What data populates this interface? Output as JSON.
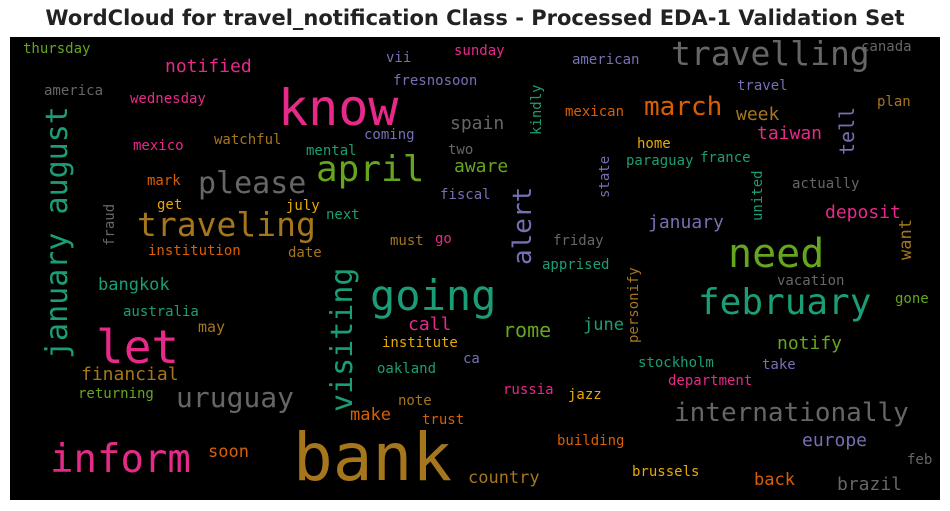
{
  "chart_data": {
    "type": "wordcloud",
    "title": "WordCloud for travel_notification Class - Processed EDA-1 Validation Set",
    "background": "#000000",
    "words": [
      {
        "text": "bank",
        "weight": 1.0,
        "color": "#a6761d"
      },
      {
        "text": "know",
        "weight": 0.83,
        "color": "#e7298a"
      },
      {
        "text": "let",
        "weight": 0.77,
        "color": "#e7298a"
      },
      {
        "text": "going",
        "weight": 0.71,
        "color": "#1b9e77"
      },
      {
        "text": "need",
        "weight": 0.67,
        "color": "#66a61e"
      },
      {
        "text": "inform",
        "weight": 0.65,
        "color": "#e7298a"
      },
      {
        "text": "april",
        "weight": 0.6,
        "color": "#66a61e"
      },
      {
        "text": "february",
        "weight": 0.6,
        "color": "#1b9e77"
      },
      {
        "text": "travelling",
        "weight": 0.55,
        "color": "#666666"
      },
      {
        "text": "traveling",
        "weight": 0.55,
        "color": "#a6761d"
      },
      {
        "text": "please",
        "weight": 0.5,
        "color": "#666666"
      },
      {
        "text": "visiting",
        "weight": 0.5,
        "color": "#1b9e77"
      },
      {
        "text": "january august",
        "weight": 0.5,
        "color": "#1b9e77"
      },
      {
        "text": "uruguay",
        "weight": 0.47,
        "color": "#666666"
      },
      {
        "text": "internationally",
        "weight": 0.44,
        "color": "#666666"
      },
      {
        "text": "march",
        "weight": 0.44,
        "color": "#d95f02"
      },
      {
        "text": "alert",
        "weight": 0.43,
        "color": "#7570b3"
      },
      {
        "text": "rome",
        "weight": 0.34,
        "color": "#66a61e"
      },
      {
        "text": "tell",
        "weight": 0.34,
        "color": "#7570b3"
      },
      {
        "text": "notified",
        "weight": 0.31,
        "color": "#e7298a"
      },
      {
        "text": "spain",
        "weight": 0.31,
        "color": "#666666"
      },
      {
        "text": "taiwan",
        "weight": 0.31,
        "color": "#e7298a"
      },
      {
        "text": "week",
        "weight": 0.31,
        "color": "#a6761d"
      },
      {
        "text": "call",
        "weight": 0.3,
        "color": "#e7298a"
      },
      {
        "text": "notify",
        "weight": 0.3,
        "color": "#66a61e"
      },
      {
        "text": "deposit",
        "weight": 0.3,
        "color": "#e7298a"
      },
      {
        "text": "january",
        "weight": 0.3,
        "color": "#7570b3"
      },
      {
        "text": "aware",
        "weight": 0.3,
        "color": "#66a61e"
      },
      {
        "text": "financial",
        "weight": 0.3,
        "color": "#a6761d"
      },
      {
        "text": "brazil",
        "weight": 0.3,
        "color": "#666666"
      },
      {
        "text": "europe",
        "weight": 0.3,
        "color": "#7570b3"
      },
      {
        "text": "bangkok",
        "weight": 0.28,
        "color": "#1b9e77"
      },
      {
        "text": "make",
        "weight": 0.28,
        "color": "#d95f02"
      },
      {
        "text": "country",
        "weight": 0.28,
        "color": "#a6761d"
      },
      {
        "text": "back",
        "weight": 0.28,
        "color": "#d95f02"
      },
      {
        "text": "june",
        "weight": 0.28,
        "color": "#1b9e77"
      },
      {
        "text": "soon",
        "weight": 0.28,
        "color": "#d95f02"
      },
      {
        "text": "want",
        "weight": 0.27,
        "color": "#a6761d"
      },
      {
        "text": "may",
        "weight": 0.25,
        "color": "#a6761d"
      },
      {
        "text": "thursday",
        "weight": 0.23,
        "color": "#66a61e"
      },
      {
        "text": "sunday",
        "weight": 0.23,
        "color": "#e7298a"
      },
      {
        "text": "canada",
        "weight": 0.23,
        "color": "#666666"
      },
      {
        "text": "america",
        "weight": 0.23,
        "color": "#666666"
      },
      {
        "text": "vii",
        "weight": 0.23,
        "color": "#7570b3"
      },
      {
        "text": "fresnosoon",
        "weight": 0.23,
        "color": "#7570b3"
      },
      {
        "text": "american",
        "weight": 0.23,
        "color": "#7570b3"
      },
      {
        "text": "travel",
        "weight": 0.23,
        "color": "#7570b3"
      },
      {
        "text": "wednesday",
        "weight": 0.23,
        "color": "#e7298a"
      },
      {
        "text": "plan",
        "weight": 0.23,
        "color": "#a6761d"
      },
      {
        "text": "mexican",
        "weight": 0.23,
        "color": "#d95f02"
      },
      {
        "text": "kindly",
        "weight": 0.23,
        "color": "#1b9e77"
      },
      {
        "text": "watchful",
        "weight": 0.23,
        "color": "#a6761d"
      },
      {
        "text": "coming",
        "weight": 0.23,
        "color": "#7570b3"
      },
      {
        "text": "home",
        "weight": 0.23,
        "color": "#e6ab02"
      },
      {
        "text": "mexico",
        "weight": 0.23,
        "color": "#e7298a"
      },
      {
        "text": "mental",
        "weight": 0.23,
        "color": "#1b9e77"
      },
      {
        "text": "two",
        "weight": 0.23,
        "color": "#666666"
      },
      {
        "text": "paraguay",
        "weight": 0.23,
        "color": "#1b9e77"
      },
      {
        "text": "france",
        "weight": 0.23,
        "color": "#1b9e77"
      },
      {
        "text": "mark",
        "weight": 0.23,
        "color": "#d95f02"
      },
      {
        "text": "state",
        "weight": 0.23,
        "color": "#7570b3"
      },
      {
        "text": "actually",
        "weight": 0.23,
        "color": "#666666"
      },
      {
        "text": "fiscal",
        "weight": 0.23,
        "color": "#7570b3"
      },
      {
        "text": "get",
        "weight": 0.23,
        "color": "#e6ab02"
      },
      {
        "text": "july",
        "weight": 0.23,
        "color": "#e6ab02"
      },
      {
        "text": "united",
        "weight": 0.23,
        "color": "#1b9e77"
      },
      {
        "text": "fraud",
        "weight": 0.23,
        "color": "#666666"
      },
      {
        "text": "next",
        "weight": 0.23,
        "color": "#1b9e77"
      },
      {
        "text": "institution",
        "weight": 0.23,
        "color": "#d95f02"
      },
      {
        "text": "date",
        "weight": 0.23,
        "color": "#a6761d"
      },
      {
        "text": "must",
        "weight": 0.23,
        "color": "#a6761d"
      },
      {
        "text": "go",
        "weight": 0.23,
        "color": "#e7298a"
      },
      {
        "text": "friday",
        "weight": 0.23,
        "color": "#666666"
      },
      {
        "text": "personify",
        "weight": 0.23,
        "color": "#a6761d"
      },
      {
        "text": "apprised",
        "weight": 0.23,
        "color": "#1b9e77"
      },
      {
        "text": "vacation",
        "weight": 0.23,
        "color": "#666666"
      },
      {
        "text": "gone",
        "weight": 0.23,
        "color": "#66a61e"
      },
      {
        "text": "australia",
        "weight": 0.23,
        "color": "#1b9e77"
      },
      {
        "text": "institute",
        "weight": 0.23,
        "color": "#e6ab02"
      },
      {
        "text": "ca",
        "weight": 0.23,
        "color": "#7570b3"
      },
      {
        "text": "stockholm",
        "weight": 0.23,
        "color": "#1b9e77"
      },
      {
        "text": "take",
        "weight": 0.23,
        "color": "#7570b3"
      },
      {
        "text": "oakland",
        "weight": 0.23,
        "color": "#1b9e77"
      },
      {
        "text": "department",
        "weight": 0.23,
        "color": "#e7298a"
      },
      {
        "text": "returning",
        "weight": 0.23,
        "color": "#66a61e"
      },
      {
        "text": "russia",
        "weight": 0.23,
        "color": "#e7298a"
      },
      {
        "text": "jazz",
        "weight": 0.23,
        "color": "#e6ab02"
      },
      {
        "text": "note",
        "weight": 0.23,
        "color": "#a6761d"
      },
      {
        "text": "trust",
        "weight": 0.23,
        "color": "#d95f02"
      },
      {
        "text": "building",
        "weight": 0.23,
        "color": "#d95f02"
      },
      {
        "text": "brussels",
        "weight": 0.23,
        "color": "#e6ab02"
      },
      {
        "text": "feb",
        "weight": 0.2,
        "color": "#666666"
      }
    ]
  }
}
